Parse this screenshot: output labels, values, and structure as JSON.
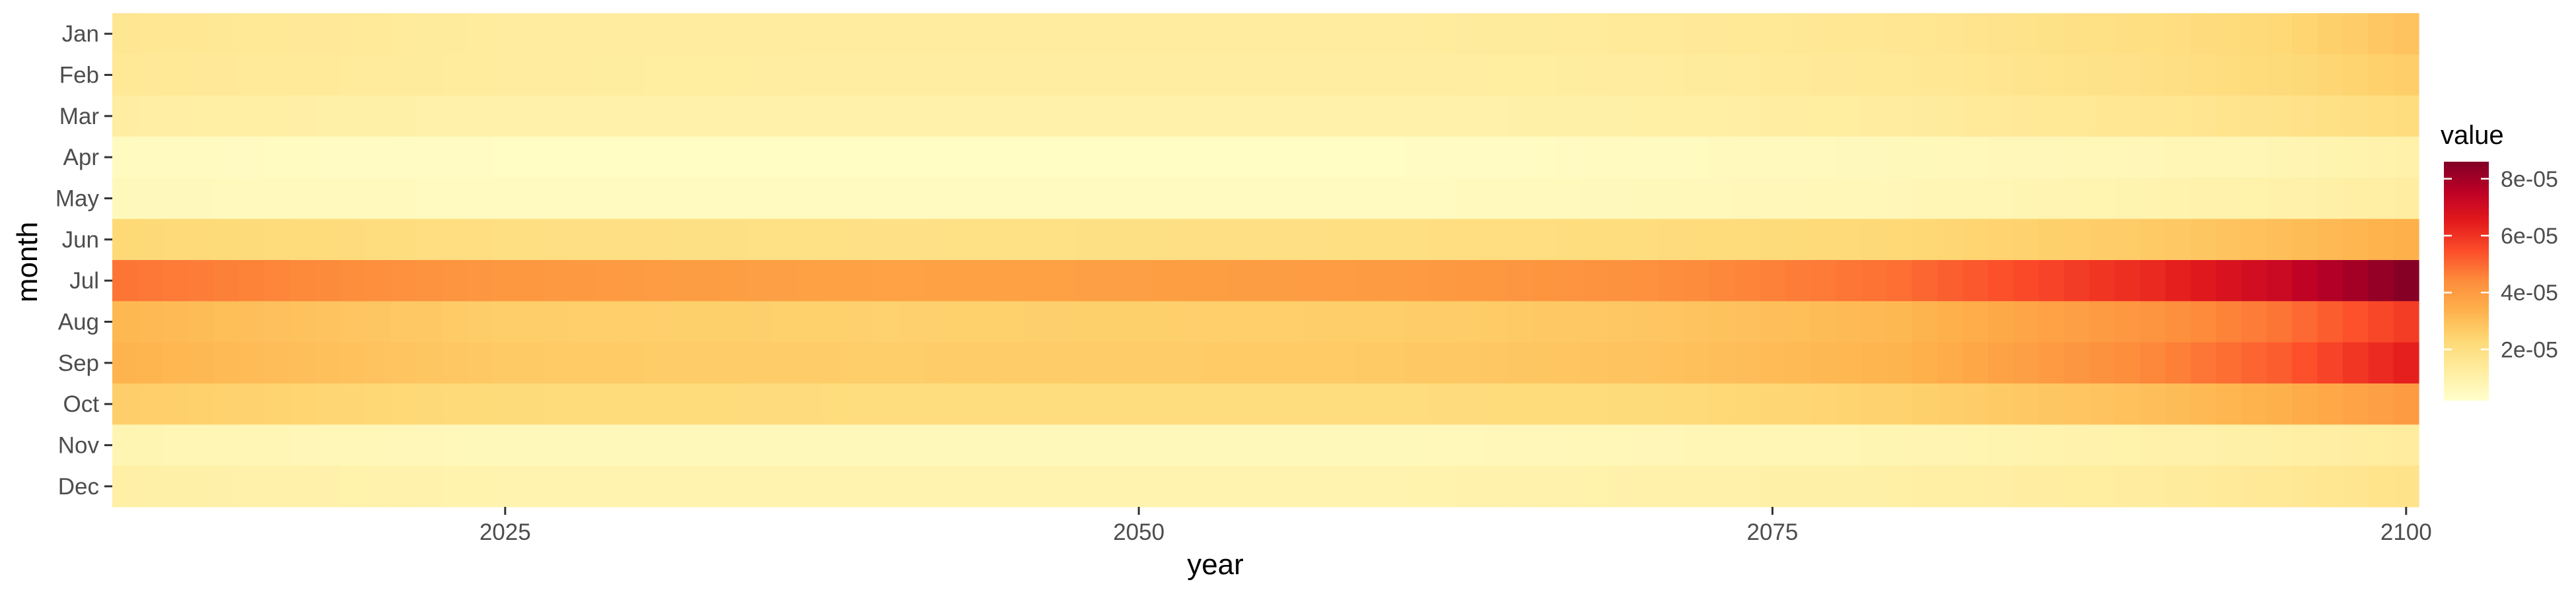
{
  "chart_data": {
    "type": "heatmap",
    "xlabel": "year",
    "ylabel": "month",
    "x_ticks": [
      2025,
      2050,
      2075,
      2100
    ],
    "year_range": [
      2010,
      2100
    ],
    "months": [
      "Jan",
      "Feb",
      "Mar",
      "Apr",
      "May",
      "Jun",
      "Jul",
      "Aug",
      "Sep",
      "Oct",
      "Nov",
      "Dec"
    ],
    "value_keyframes_years": [
      2010,
      2025,
      2040,
      2060,
      2070,
      2080,
      2090,
      2095,
      2100
    ],
    "values_by_month": {
      "Jan": [
        1.6e-05,
        1.3e-05,
        1.3e-05,
        1.3e-05,
        1.4e-05,
        1.6e-05,
        2e-05,
        2.3e-05,
        2.9e-05
      ],
      "Feb": [
        1.5e-05,
        1.3e-05,
        1.2e-05,
        1.2e-05,
        1.3e-05,
        1.5e-05,
        1.9e-05,
        2.2e-05,
        2.6e-05
      ],
      "Mar": [
        1.2e-05,
        1e-05,
        1e-05,
        1e-05,
        1.1e-05,
        1.3e-05,
        1.6e-05,
        1.8e-05,
        2.1e-05
      ],
      "Apr": [
        5e-06,
        4e-06,
        4e-06,
        4e-06,
        5e-06,
        6e-06,
        7e-06,
        8e-06,
        1e-05
      ],
      "May": [
        6e-06,
        5e-06,
        5e-06,
        5e-06,
        6e-06,
        7e-06,
        9e-06,
        1e-05,
        1.2e-05
      ],
      "Jun": [
        2.3e-05,
        2e-05,
        1.9e-05,
        2e-05,
        2.1e-05,
        2.3e-05,
        2.7e-05,
        3e-05,
        3.4e-05
      ],
      "Jul": [
        4.8e-05,
        4.1e-05,
        3.8e-05,
        4e-05,
        4.3e-05,
        4.9e-05,
        6.2e-05,
        7.2e-05,
        8.5e-05
      ],
      "Aug": [
        3.2e-05,
        2.6e-05,
        2.5e-05,
        2.6e-05,
        2.8e-05,
        3.2e-05,
        4.2e-05,
        4.8e-05,
        5.8e-05
      ],
      "Sep": [
        3.3e-05,
        2.7e-05,
        2.6e-05,
        2.7e-05,
        2.9e-05,
        3.3e-05,
        4.5e-05,
        5.2e-05,
        6.4e-05
      ],
      "Oct": [
        2.6e-05,
        2.2e-05,
        2.1e-05,
        2.1e-05,
        2.2e-05,
        2.5e-05,
        3e-05,
        3.4e-05,
        4e-05
      ],
      "Nov": [
        8e-06,
        6e-06,
        6e-06,
        6e-06,
        7e-06,
        8e-06,
        1e-05,
        1.1e-05,
        1.3e-05
      ],
      "Dec": [
        1.1e-05,
        9e-06,
        9e-06,
        9e-06,
        1e-05,
        1.1e-05,
        1.3e-05,
        1.5e-05,
        1.8e-05
      ]
    },
    "colorscale": {
      "stops": [
        [
          0.0,
          "#ffffcc"
        ],
        [
          0.125,
          "#ffeda0"
        ],
        [
          0.25,
          "#fed976"
        ],
        [
          0.375,
          "#feb24c"
        ],
        [
          0.5,
          "#fd8d3c"
        ],
        [
          0.625,
          "#fc4e2a"
        ],
        [
          0.75,
          "#e31a1c"
        ],
        [
          0.875,
          "#bd0026"
        ],
        [
          1.0,
          "#800026"
        ]
      ],
      "range": [
        2e-06,
        8.6e-05
      ]
    },
    "legend": {
      "title": "value",
      "position": "right",
      "ticks": [
        2e-05,
        4e-05,
        6e-05,
        8e-05
      ],
      "tick_labels": [
        "2e-05",
        "4e-05",
        "6e-05",
        "8e-05"
      ]
    }
  }
}
